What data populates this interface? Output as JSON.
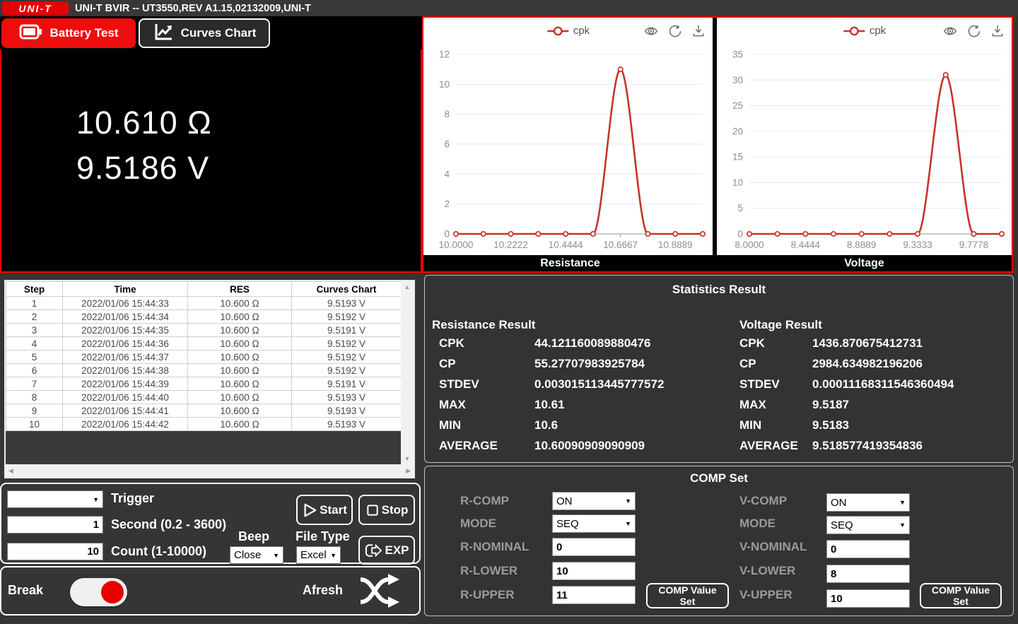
{
  "title_bar": {
    "logo_text": "UNI-T",
    "title": "UNI-T BVIR -- UT3550,REV A1.15,02132009,UNI-T"
  },
  "tabs": [
    {
      "label": "Battery Test",
      "active": true
    },
    {
      "label": "Curves Chart",
      "active": false
    }
  ],
  "display": {
    "resistance_reading": "10.610 Ω",
    "voltage_reading": "9.5186 V"
  },
  "chart_data": [
    {
      "type": "line",
      "title": "Resistance",
      "legend": "cpk",
      "legend_position": "top",
      "smooth": true,
      "grid": true,
      "color": "#c63427",
      "x": [
        10.0,
        10.1111,
        10.2222,
        10.3333,
        10.4444,
        10.5556,
        10.6667,
        10.7778,
        10.8889,
        11.0
      ],
      "series": [
        {
          "name": "cpk",
          "values": [
            0,
            0,
            0,
            0,
            0,
            0,
            11,
            0,
            0,
            0
          ]
        }
      ],
      "x_tick_labels": [
        "10.0000",
        "10.2222",
        "10.4444",
        "10.6667",
        "10.8889"
      ],
      "x_label_indices": [
        0,
        2,
        4,
        6,
        8
      ],
      "y_ticks": [
        0,
        2,
        4,
        6,
        8,
        10,
        12
      ],
      "xlim": [
        10.0,
        11.0
      ],
      "ylim": [
        0,
        12
      ]
    },
    {
      "type": "line",
      "title": "Voltage",
      "legend": "cpk",
      "legend_position": "top",
      "smooth": true,
      "grid": true,
      "color": "#c63427",
      "x": [
        8.0,
        8.2222,
        8.4444,
        8.6667,
        8.8889,
        9.1111,
        9.3333,
        9.5556,
        9.7778,
        10.0
      ],
      "series": [
        {
          "name": "cpk",
          "values": [
            0,
            0,
            0,
            0,
            0,
            0,
            0,
            31,
            0,
            0
          ]
        }
      ],
      "x_tick_labels": [
        "8.0000",
        "8.4444",
        "8.8889",
        "9.3333",
        "9.7778"
      ],
      "x_label_indices": [
        0,
        2,
        4,
        6,
        8
      ],
      "y_ticks": [
        0,
        5,
        10,
        15,
        20,
        25,
        30,
        35
      ],
      "xlim": [
        8.0,
        10.0
      ],
      "ylim": [
        0,
        35
      ]
    }
  ],
  "table": {
    "columns": [
      "Step",
      "Time",
      "RES",
      "Curves Chart"
    ],
    "rows": [
      [
        "1",
        "2022/01/06 15:44:33",
        "10.600 Ω",
        "9.5193 V"
      ],
      [
        "2",
        "2022/01/06 15:44:34",
        "10.600 Ω",
        "9.5192 V"
      ],
      [
        "3",
        "2022/01/06 15:44:35",
        "10.600 Ω",
        "9.5191 V"
      ],
      [
        "4",
        "2022/01/06 15:44:36",
        "10.600 Ω",
        "9.5192 V"
      ],
      [
        "5",
        "2022/01/06 15:44:37",
        "10.600 Ω",
        "9.5192 V"
      ],
      [
        "6",
        "2022/01/06 15:44:38",
        "10.600 Ω",
        "9.5192 V"
      ],
      [
        "7",
        "2022/01/06 15:44:39",
        "10.600 Ω",
        "9.5191 V"
      ],
      [
        "8",
        "2022/01/06 15:44:40",
        "10.600 Ω",
        "9.5193 V"
      ],
      [
        "9",
        "2022/01/06 15:44:41",
        "10.600 Ω",
        "9.5193 V"
      ],
      [
        "10",
        "2022/01/06 15:44:42",
        "10.600 Ω",
        "9.5193 V"
      ]
    ]
  },
  "controls": {
    "trigger_value": "",
    "trigger_label": "Trigger",
    "second_value": "1",
    "second_label": "Second (0.2 - 3600)",
    "count_value": "10",
    "count_label": "Count (1-10000)",
    "beep_label": "Beep",
    "beep_value": "Close",
    "file_type_label": "File Type",
    "file_type_value": "Excel",
    "start_label": "Start",
    "stop_label": "Stop",
    "exp_label": "EXP",
    "break_label": "Break",
    "afresh_label": "Afresh"
  },
  "statistics": {
    "title": "Statistics Result",
    "resistance": {
      "title": "Resistance Result",
      "rows": [
        {
          "label": "CPK",
          "value": "44.121160089880476"
        },
        {
          "label": "CP",
          "value": "55.27707983925784"
        },
        {
          "label": "STDEV",
          "value": "0.003015113445777572"
        },
        {
          "label": "MAX",
          "value": "10.61"
        },
        {
          "label": "MIN",
          "value": "10.6"
        },
        {
          "label": "AVERAGE",
          "value": "10.60090909090909"
        }
      ]
    },
    "voltage": {
      "title": "Voltage Result",
      "rows": [
        {
          "label": "CPK",
          "value": "1436.870675412731"
        },
        {
          "label": "CP",
          "value": "2984.634982196206"
        },
        {
          "label": "STDEV",
          "value": "0.00011168311546360494"
        },
        {
          "label": "MAX",
          "value": "9.5187"
        },
        {
          "label": "MIN",
          "value": "9.5183"
        },
        {
          "label": "AVERAGE",
          "value": "9.518577419354836"
        }
      ]
    }
  },
  "comp_set": {
    "title": "COMP Set",
    "r": {
      "comp_label": "R-COMP",
      "comp_value": "ON",
      "mode_label": "MODE",
      "mode_value": "SEQ",
      "nominal_label": "R-NOMINAL",
      "nominal_value": "0",
      "lower_label": "R-LOWER",
      "lower_value": "10",
      "upper_label": "R-UPPER",
      "upper_value": "11",
      "button_label": "COMP Value Set"
    },
    "v": {
      "comp_label": "V-COMP",
      "comp_value": "ON",
      "mode_label": "MODE",
      "mode_value": "SEQ",
      "nominal_label": "V-NOMINAL",
      "nominal_value": "0",
      "lower_label": "V-LOWER",
      "lower_value": "8",
      "upper_label": "V-UPPER",
      "upper_value": "10",
      "button_label": "COMP Value Set"
    }
  },
  "icons": {
    "scroll_up": "▲",
    "scroll_down": "▼",
    "scroll_left": "◀",
    "scroll_right": "▶",
    "dropdown_arrow": "▼"
  },
  "colors": {
    "brand_red": "#e60000",
    "active_tab_red": "#ee0c0c",
    "chart_line_red": "#c63427",
    "panel_dark": "#333333",
    "toggle_knob_red": "#e80000"
  }
}
